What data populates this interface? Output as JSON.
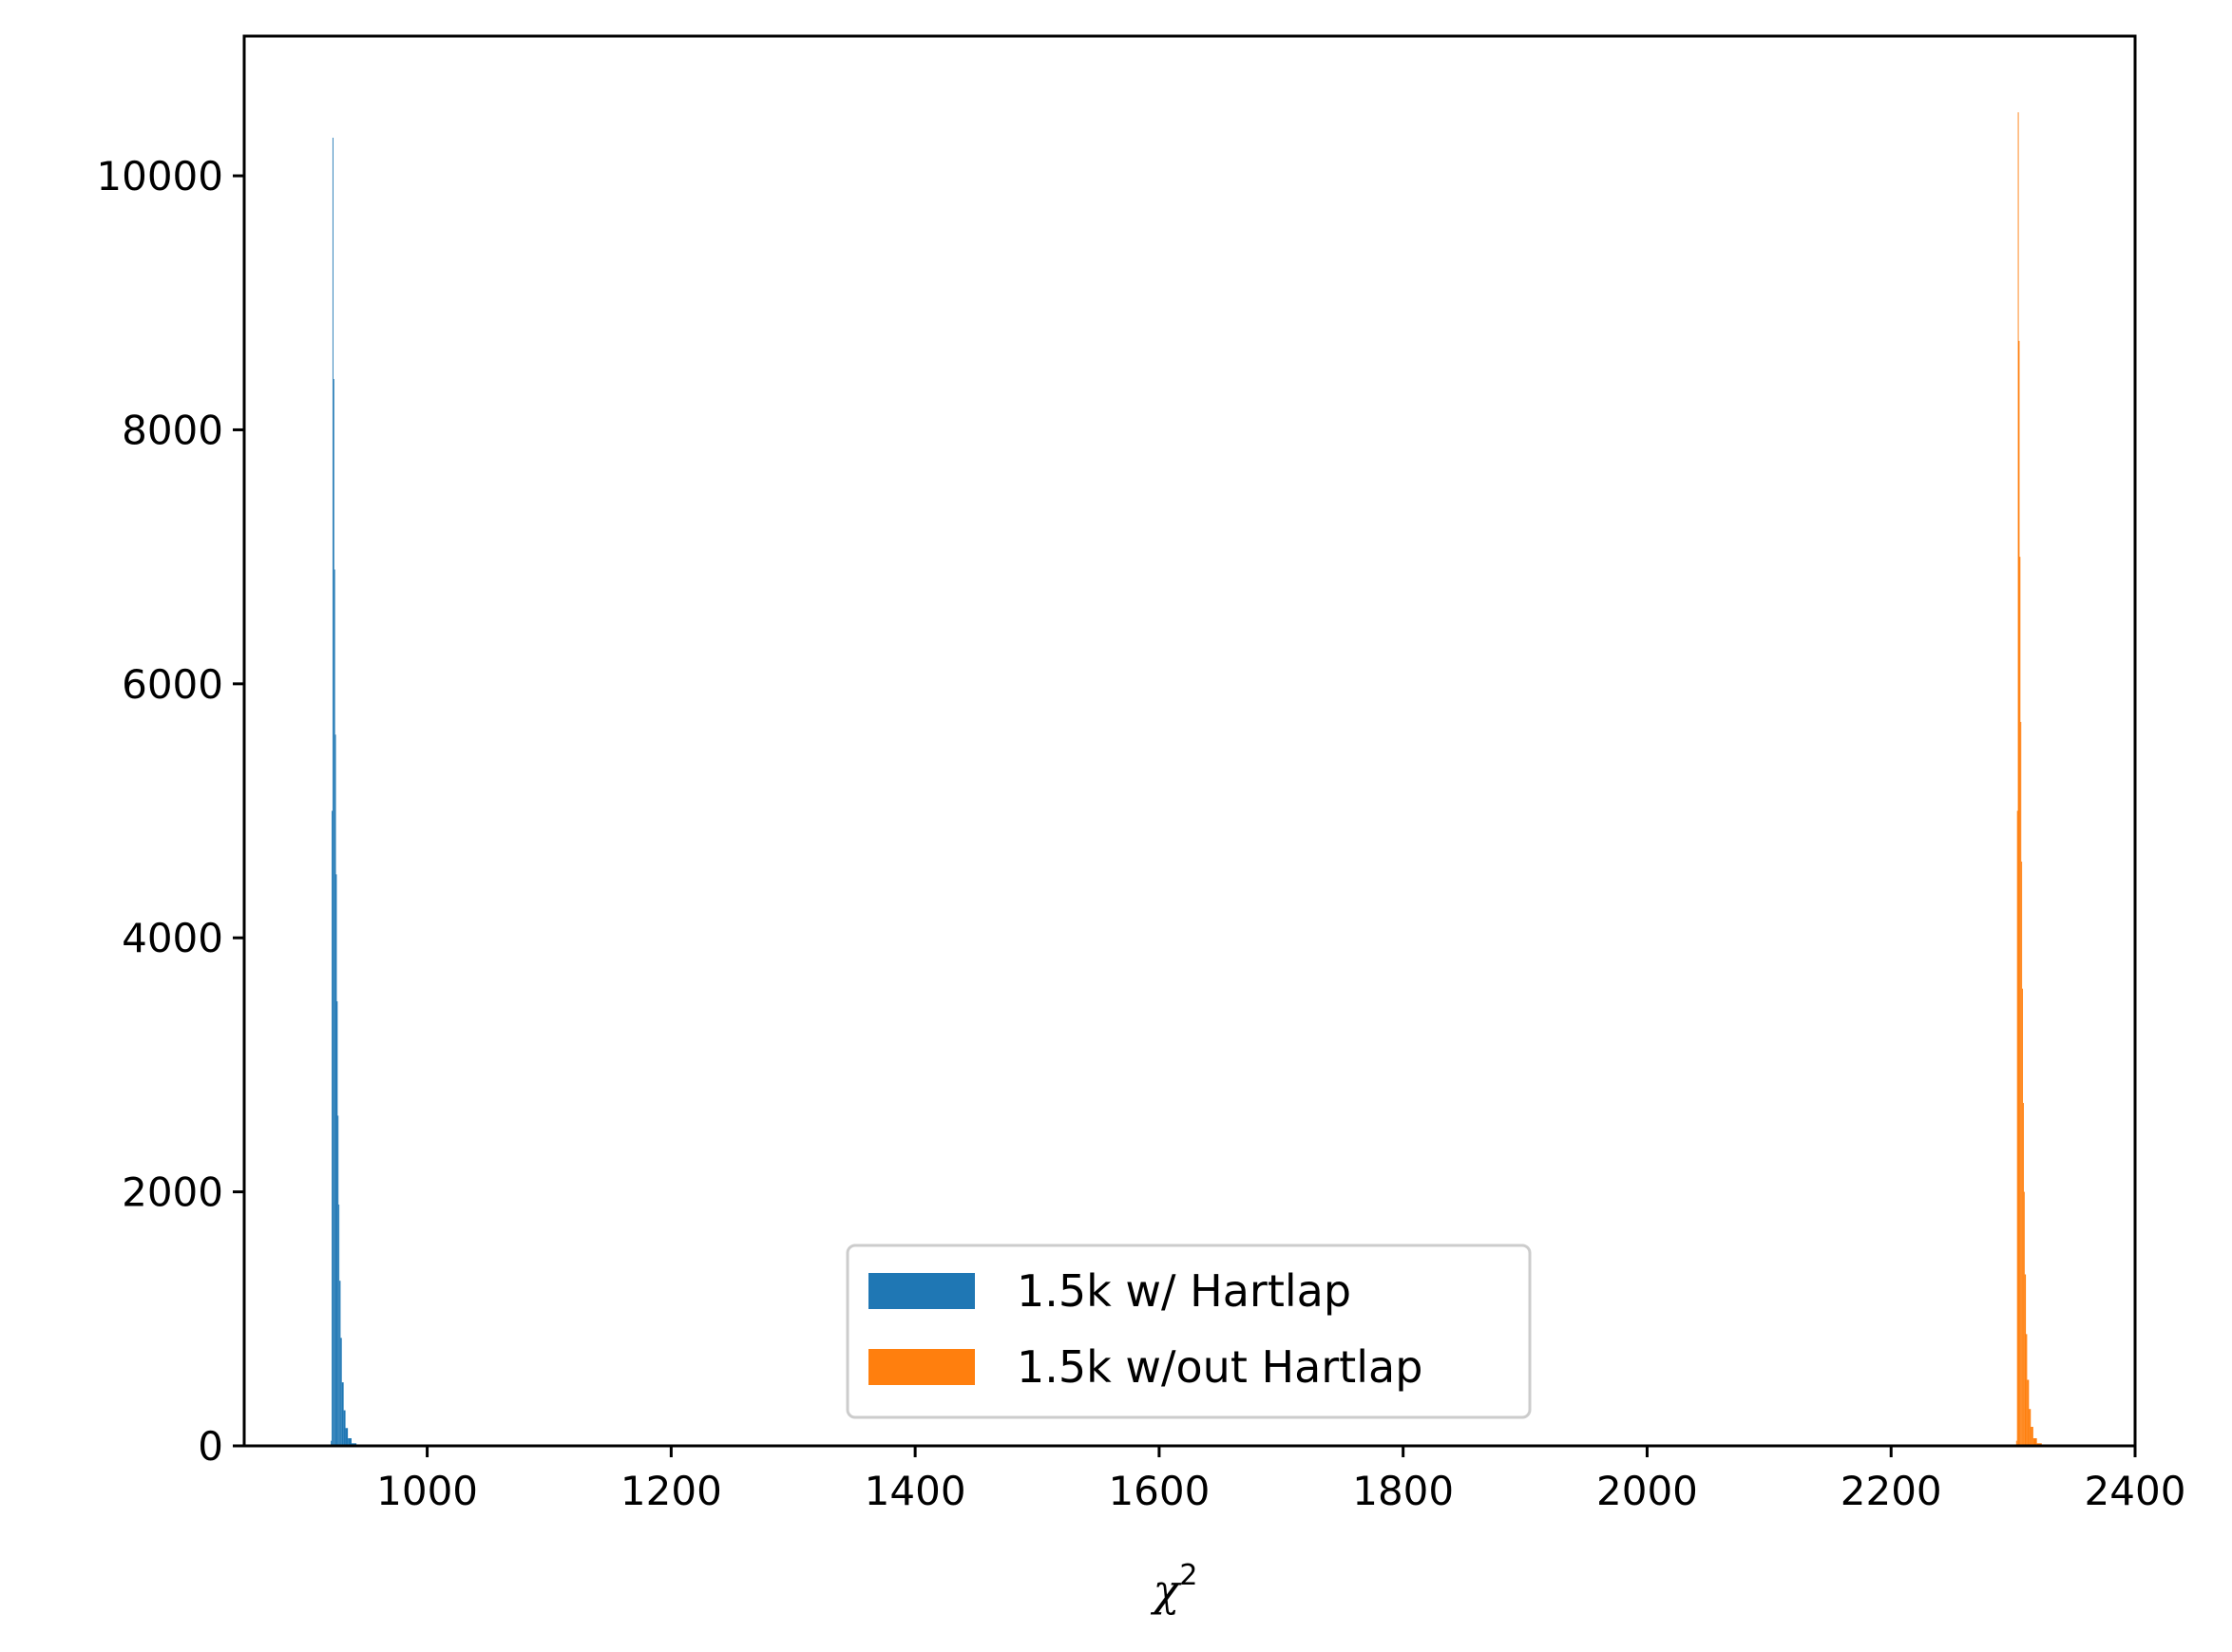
{
  "chart_data": {
    "type": "bar",
    "title": "",
    "xlabel_main": "χ",
    "xlabel_sup": "2",
    "ylabel": "",
    "xlim": [
      850,
      2400
    ],
    "ylim": [
      0,
      11100
    ],
    "grid": false,
    "legend_placement": "lower-center",
    "x_ticks": [
      "1000",
      "1200",
      "1400",
      "1600",
      "1800",
      "2000",
      "2200",
      "2400"
    ],
    "y_ticks": [
      "0",
      "2000",
      "4000",
      "6000",
      "8000",
      "10000"
    ],
    "x_tick_values": [
      1000,
      1200,
      1400,
      1600,
      1800,
      2000,
      2200,
      2400
    ],
    "y_tick_values": [
      0,
      2000,
      4000,
      6000,
      8000,
      10000
    ],
    "series": [
      {
        "name": "1.5k w/ Hartlap",
        "color": "#1f77b4",
        "bins": [
          [
            921.0,
            921.7,
            40
          ],
          [
            921.7,
            922.4,
            5000
          ],
          [
            922.4,
            923.1,
            10300
          ],
          [
            923.1,
            923.8,
            8400
          ],
          [
            923.8,
            924.5,
            6900
          ],
          [
            924.5,
            925.2,
            5600
          ],
          [
            925.2,
            925.9,
            4500
          ],
          [
            925.9,
            926.6,
            3500
          ],
          [
            926.6,
            927.3,
            2600
          ],
          [
            927.3,
            928.0,
            1900
          ],
          [
            928.0,
            929.0,
            1300
          ],
          [
            929.0,
            930.0,
            850
          ],
          [
            930.0,
            931.5,
            500
          ],
          [
            931.5,
            933.0,
            280
          ],
          [
            933.0,
            935.0,
            140
          ],
          [
            935.0,
            938.0,
            60
          ],
          [
            938.0,
            942.0,
            20
          ]
        ]
      },
      {
        "name": "1.5k w/out Hartlap",
        "color": "#ff7f0e",
        "bins": [
          [
            2302.5,
            2303.2,
            40
          ],
          [
            2303.2,
            2303.9,
            5000
          ],
          [
            2303.9,
            2304.6,
            10500
          ],
          [
            2304.6,
            2305.3,
            8700
          ],
          [
            2305.3,
            2306.0,
            7000
          ],
          [
            2306.0,
            2306.7,
            5700
          ],
          [
            2306.7,
            2307.4,
            4600
          ],
          [
            2307.4,
            2308.1,
            3600
          ],
          [
            2308.1,
            2308.8,
            2700
          ],
          [
            2308.8,
            2309.5,
            2000
          ],
          [
            2309.5,
            2310.5,
            1350
          ],
          [
            2310.5,
            2311.5,
            880
          ],
          [
            2311.5,
            2313.0,
            520
          ],
          [
            2313.0,
            2314.5,
            290
          ],
          [
            2314.5,
            2316.5,
            150
          ],
          [
            2316.5,
            2319.5,
            60
          ],
          [
            2319.5,
            2323.5,
            20
          ]
        ]
      }
    ]
  }
}
